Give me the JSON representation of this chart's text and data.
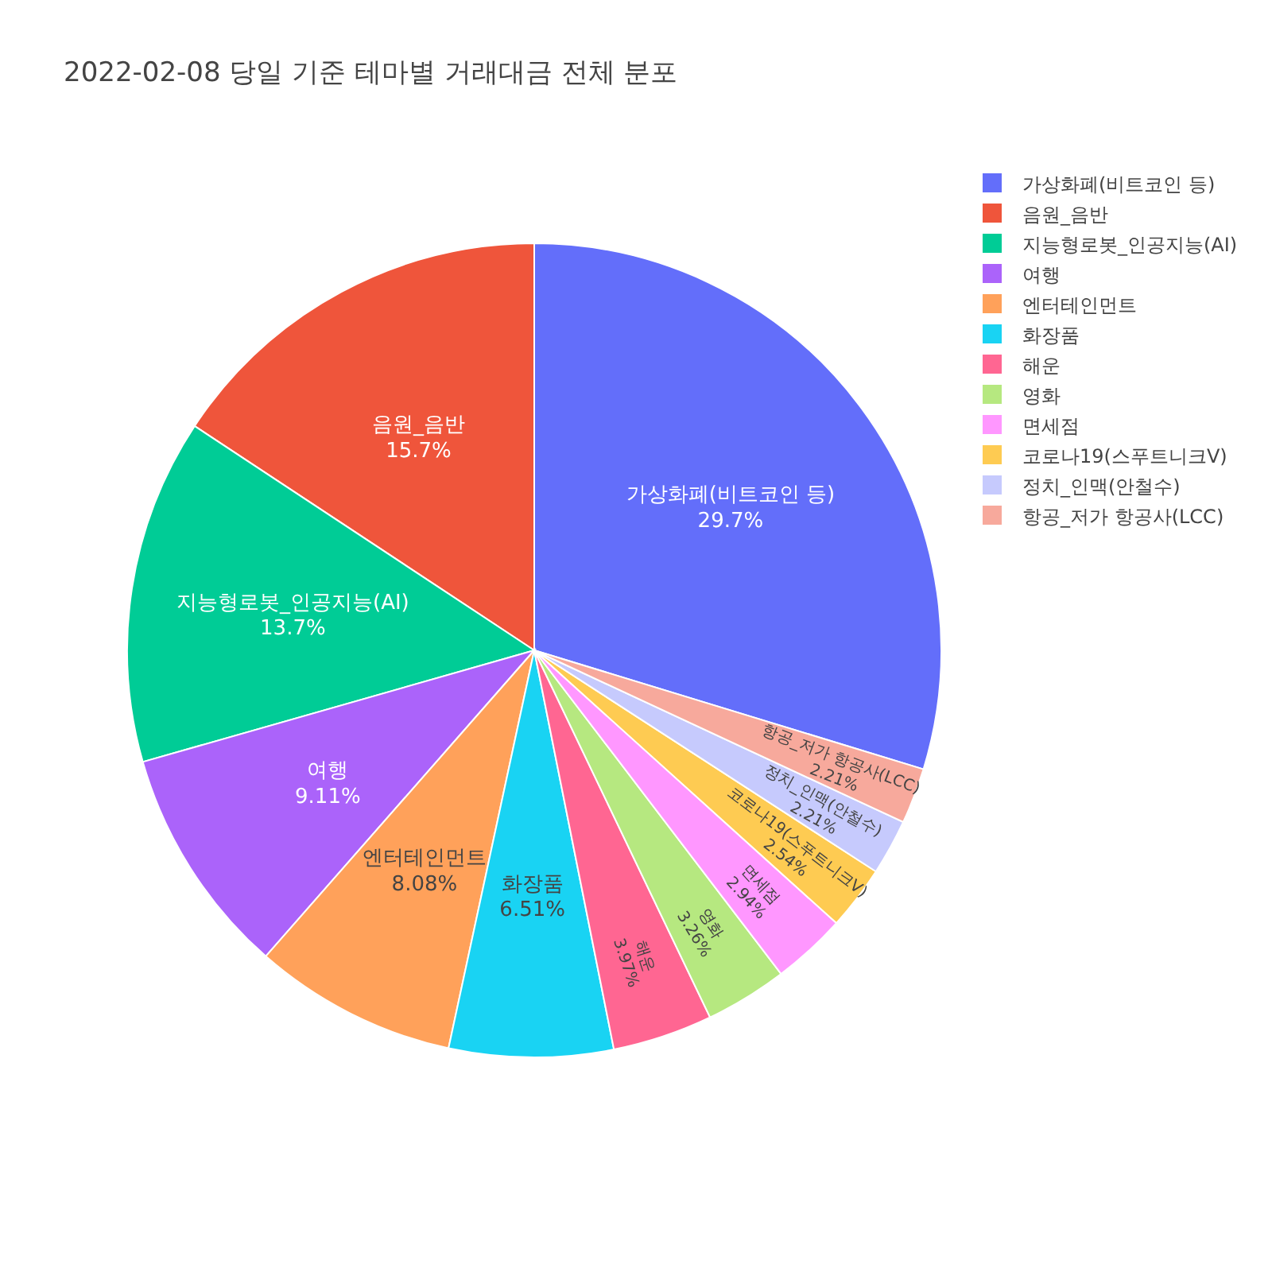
{
  "chart_data": {
    "type": "pie",
    "title": "2022-02-08 당일 기준 테마별 거래대금 전체 분포",
    "categories": [
      "가상화폐(비트코인 등)",
      "음원_음반",
      "지능형로봇_인공지능(AI)",
      "여행",
      "엔터테인먼트",
      "화장품",
      "해운",
      "영화",
      "면세점",
      "코로나19(스푸트니크V)",
      "정치_인맥(안철수)",
      "항공_저가 항공사(LCC)"
    ],
    "values": [
      29.7,
      15.7,
      13.7,
      9.11,
      8.08,
      6.51,
      3.97,
      3.26,
      2.94,
      2.54,
      2.21,
      2.21
    ],
    "colors": [
      "#636efa",
      "#ef553b",
      "#00cc96",
      "#ab63fa",
      "#ffa15a",
      "#19d3f3",
      "#ff6692",
      "#b6e880",
      "#ff97ff",
      "#fecb52",
      "#c6cafd",
      "#f7a99c"
    ],
    "value_labels": [
      "29.7%",
      "15.7%",
      "13.7%",
      "9.11%",
      "8.08%",
      "6.51%",
      "3.97%",
      "3.26%",
      "2.94%",
      "2.54%",
      "2.21%",
      "2.21%"
    ],
    "legend": "top right"
  }
}
